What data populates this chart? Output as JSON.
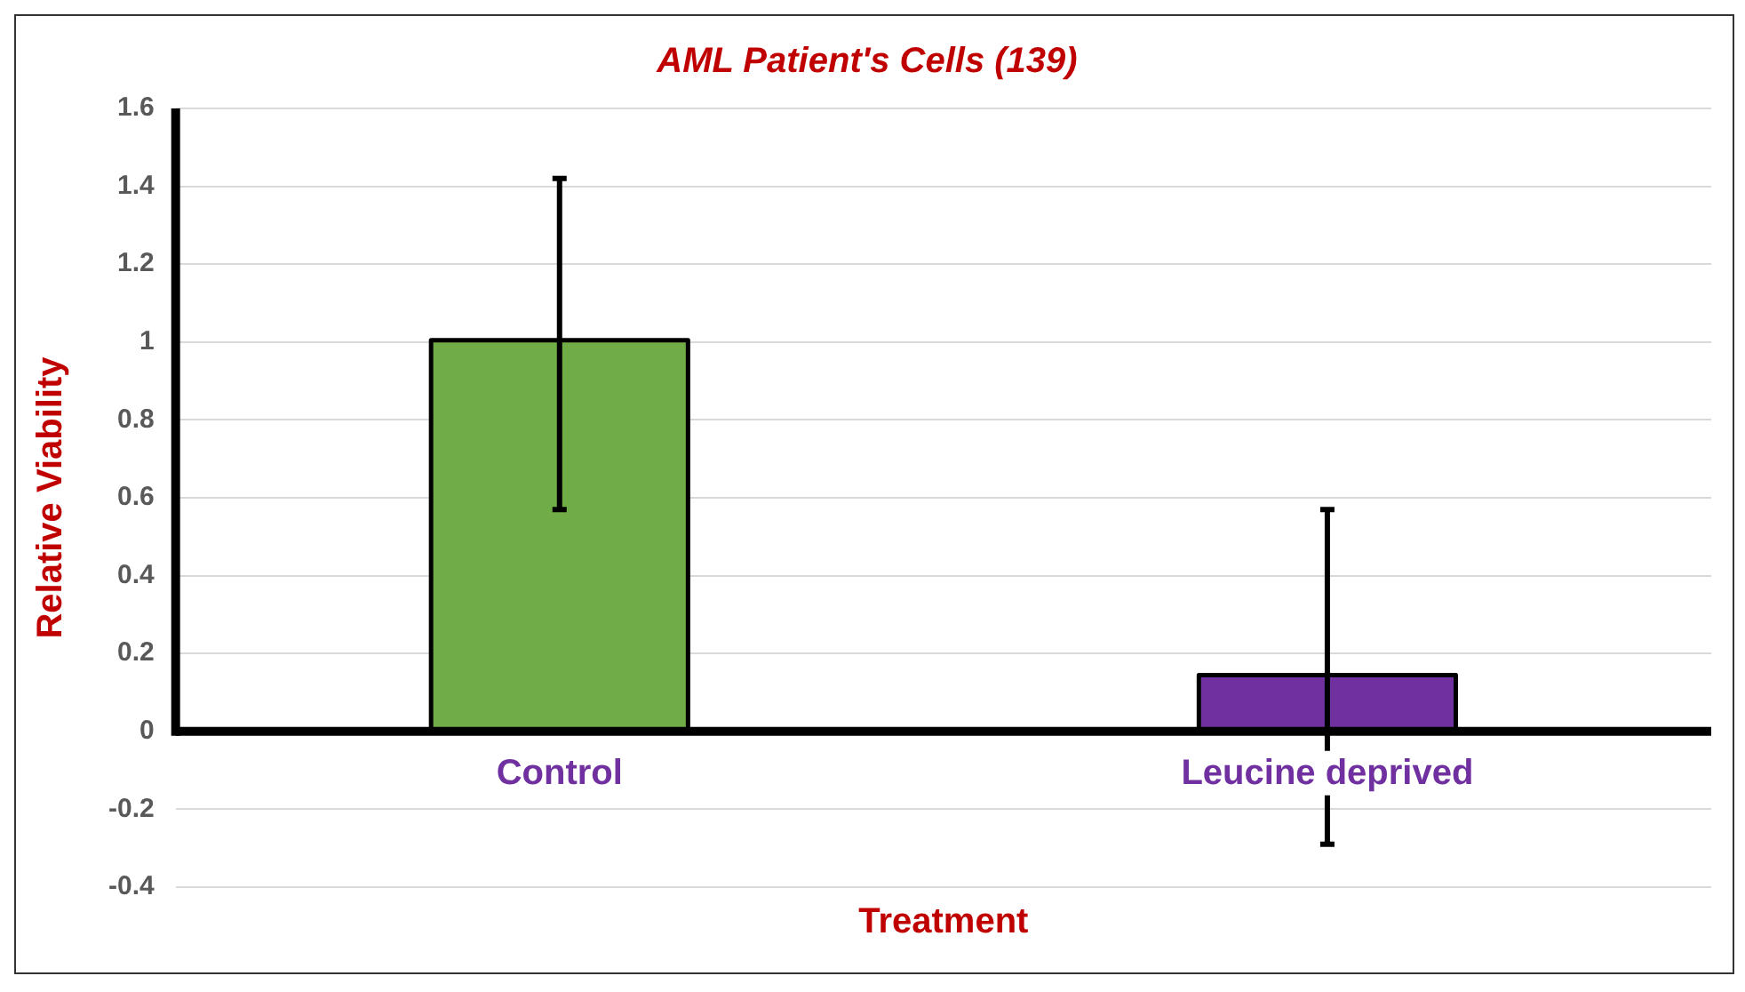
{
  "chart_data": {
    "type": "bar",
    "title": "AML Patient's Cells (139)",
    "xlabel": "Treatment",
    "ylabel": "Relative Viability",
    "categories": [
      "Control",
      "Leucine deprived"
    ],
    "values": [
      1,
      0.14
    ],
    "colors": [
      "#70ad47",
      "#7030a0"
    ],
    "errors": [
      [
        0.57,
        1.42
      ],
      [
        -0.29,
        0.57
      ]
    ],
    "ylim": [
      -0.4,
      1.6
    ],
    "yticks": [
      -0.4,
      -0.2,
      0,
      0.2,
      0.4,
      0.6,
      0.8,
      1,
      1.2,
      1.4,
      1.6
    ],
    "grid": "y",
    "legend": false
  }
}
